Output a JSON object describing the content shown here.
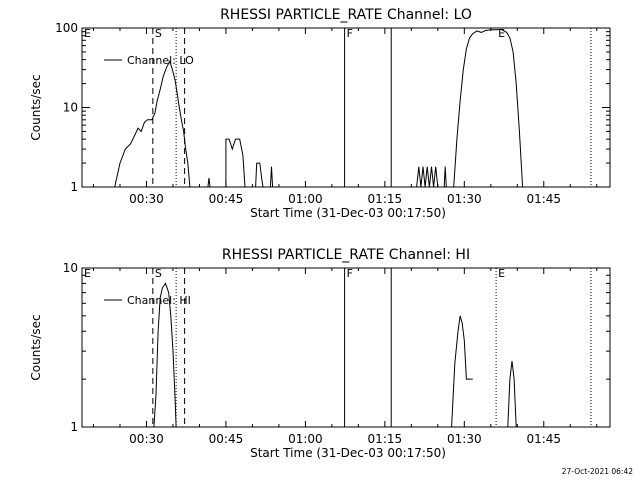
{
  "footer": {
    "timestamp": "27-Oct-2021 06:42"
  },
  "chart_data": [
    {
      "type": "line",
      "title": "RHESSI PARTICLE_RATE Channel: LO",
      "xlabel": "Start Time (31-Dec-03 00:17:50)",
      "ylabel": "Counts/sec",
      "y_scale": "log",
      "ylim": [
        1,
        100
      ],
      "xlim_minutes": [
        17.83,
        117.5
      ],
      "x_ticks": [
        {
          "label": "00:30",
          "value": 30
        },
        {
          "label": "00:45",
          "value": 45
        },
        {
          "label": "01:00",
          "value": 60
        },
        {
          "label": "01:15",
          "value": 75
        },
        {
          "label": "01:30",
          "value": 90
        },
        {
          "label": "01:45",
          "value": 105
        }
      ],
      "y_ticks": [
        {
          "label": "1",
          "value": 1
        },
        {
          "label": "10",
          "value": 10
        },
        {
          "label": "100",
          "value": 100
        }
      ],
      "legend": {
        "label": "Channel: LO",
        "placement": "top-left"
      },
      "markers": [
        {
          "label": "E",
          "x": 17.83,
          "style": "none"
        },
        {
          "label": "S",
          "x": 31.2,
          "style": "dashed"
        },
        {
          "label": "",
          "x": 35.6,
          "style": "dotted"
        },
        {
          "label": "",
          "x": 37.2,
          "style": "dashed"
        },
        {
          "label": "F",
          "x": 67.4,
          "style": "solid"
        },
        {
          "label": "",
          "x": 76.2,
          "style": "solid"
        },
        {
          "label": "E",
          "x": 96.0,
          "style": "none"
        },
        {
          "label": "",
          "x": 113.9,
          "style": "dotted"
        }
      ],
      "series": [
        {
          "name": "Channel: LO",
          "segments": [
            [
              [
                24.0,
                1
              ],
              [
                25.0,
                2.0
              ],
              [
                26.0,
                3.0
              ],
              [
                27.0,
                3.5
              ],
              [
                27.8,
                4.5
              ],
              [
                28.4,
                5.5
              ],
              [
                29.0,
                5.0
              ],
              [
                29.6,
                6.5
              ],
              [
                30.2,
                7.0
              ],
              [
                31.0,
                7.0
              ],
              [
                31.6,
                8.5
              ],
              [
                32.0,
                12
              ],
              [
                32.6,
                17
              ],
              [
                33.2,
                25
              ],
              [
                33.8,
                32
              ],
              [
                34.4,
                38
              ],
              [
                34.9,
                30
              ],
              [
                35.4,
                22
              ],
              [
                35.8,
                15
              ],
              [
                36.2,
                10
              ],
              [
                36.6,
                7
              ],
              [
                37.0,
                5
              ],
              [
                37.4,
                3
              ],
              [
                37.8,
                2
              ],
              [
                38.2,
                1
              ]
            ],
            [
              [
                41.6,
                1
              ],
              [
                41.8,
                1.3
              ],
              [
                42.0,
                1
              ]
            ],
            [
              [
                45.0,
                1
              ],
              [
                45.0,
                4
              ],
              [
                45.6,
                4
              ],
              [
                46.2,
                3.0
              ],
              [
                46.8,
                4
              ],
              [
                47.6,
                4
              ],
              [
                48.2,
                2.5
              ],
              [
                48.6,
                1
              ]
            ],
            [
              [
                50.6,
                1
              ],
              [
                50.8,
                2.0
              ],
              [
                51.4,
                2.0
              ],
              [
                51.8,
                1.2
              ],
              [
                52.0,
                1
              ]
            ],
            [
              [
                53.4,
                1
              ],
              [
                53.6,
                1.8
              ],
              [
                53.8,
                1
              ]
            ],
            [
              [
                81.0,
                1
              ],
              [
                81.4,
                1.8
              ],
              [
                81.8,
                1.0
              ],
              [
                82.2,
                1.8
              ],
              [
                82.6,
                1.0
              ],
              [
                83.0,
                1.8
              ],
              [
                83.4,
                1.0
              ],
              [
                83.8,
                1.8
              ],
              [
                84.2,
                1.0
              ],
              [
                84.6,
                1.8
              ],
              [
                85.0,
                1
              ]
            ],
            [
              [
                86.2,
                1
              ],
              [
                86.4,
                1.8
              ],
              [
                86.6,
                1
              ]
            ],
            [
              [
                87.4,
                1
              ],
              [
                88.0,
                1.0
              ],
              [
                88.6,
                4
              ],
              [
                89.2,
                12
              ],
              [
                89.8,
                30
              ],
              [
                90.4,
                55
              ],
              [
                91.0,
                75
              ],
              [
                91.6,
                85
              ],
              [
                92.4,
                92
              ],
              [
                93.2,
                88
              ],
              [
                94.0,
                93
              ],
              [
                95.0,
                95
              ],
              [
                96.0,
                95
              ],
              [
                97.0,
                96
              ],
              [
                98.0,
                88
              ],
              [
                98.6,
                75
              ],
              [
                99.2,
                50
              ],
              [
                99.8,
                20
              ],
              [
                100.4,
                5
              ],
              [
                101.0,
                1
              ]
            ]
          ]
        }
      ]
    },
    {
      "type": "line",
      "title": "RHESSI PARTICLE_RATE Channel: HI",
      "xlabel": "Start Time (31-Dec-03 00:17:50)",
      "ylabel": "Counts/sec",
      "y_scale": "log",
      "ylim": [
        1,
        10
      ],
      "xlim_minutes": [
        17.83,
        117.5
      ],
      "x_ticks": [
        {
          "label": "00:30",
          "value": 30
        },
        {
          "label": "00:45",
          "value": 45
        },
        {
          "label": "01:00",
          "value": 60
        },
        {
          "label": "01:15",
          "value": 75
        },
        {
          "label": "01:30",
          "value": 90
        },
        {
          "label": "01:45",
          "value": 105
        }
      ],
      "y_ticks": [
        {
          "label": "1",
          "value": 1
        },
        {
          "label": "10",
          "value": 10
        }
      ],
      "legend": {
        "label": "Channel: HI",
        "placement": "top-left"
      },
      "markers": [
        {
          "label": "E",
          "x": 17.83,
          "style": "none"
        },
        {
          "label": "S",
          "x": 31.2,
          "style": "dashed"
        },
        {
          "label": "",
          "x": 35.6,
          "style": "dotted"
        },
        {
          "label": "",
          "x": 37.2,
          "style": "dashed"
        },
        {
          "label": "F",
          "x": 67.4,
          "style": "solid"
        },
        {
          "label": "",
          "x": 76.2,
          "style": "solid"
        },
        {
          "label": "E",
          "x": 96.0,
          "style": "none"
        },
        {
          "label": "",
          "x": 96.0,
          "style": "dotted"
        },
        {
          "label": "",
          "x": 113.9,
          "style": "dotted"
        }
      ],
      "series": [
        {
          "name": "Channel: HI",
          "segments": [
            [
              [
                31.4,
                1
              ],
              [
                31.8,
                1.6
              ],
              [
                32.2,
                4.0
              ],
              [
                32.6,
                6.5
              ],
              [
                33.0,
                7.5
              ],
              [
                33.6,
                8.0
              ],
              [
                34.2,
                7.0
              ],
              [
                34.6,
                5.0
              ],
              [
                35.0,
                3.0
              ],
              [
                35.4,
                1.5
              ],
              [
                35.6,
                1
              ]
            ],
            [
              [
                87.6,
                1
              ],
              [
                88.2,
                2.5
              ],
              [
                88.8,
                4.0
              ],
              [
                89.2,
                5.0
              ],
              [
                89.6,
                4.5
              ],
              [
                90.0,
                3.5
              ],
              [
                90.4,
                2.0
              ],
              [
                91.6,
                2.0
              ]
            ],
            [
              [
                98.2,
                1
              ],
              [
                98.6,
                2.0
              ],
              [
                99.0,
                2.6
              ],
              [
                99.4,
                2.0
              ],
              [
                99.8,
                1
              ]
            ]
          ]
        }
      ]
    }
  ]
}
